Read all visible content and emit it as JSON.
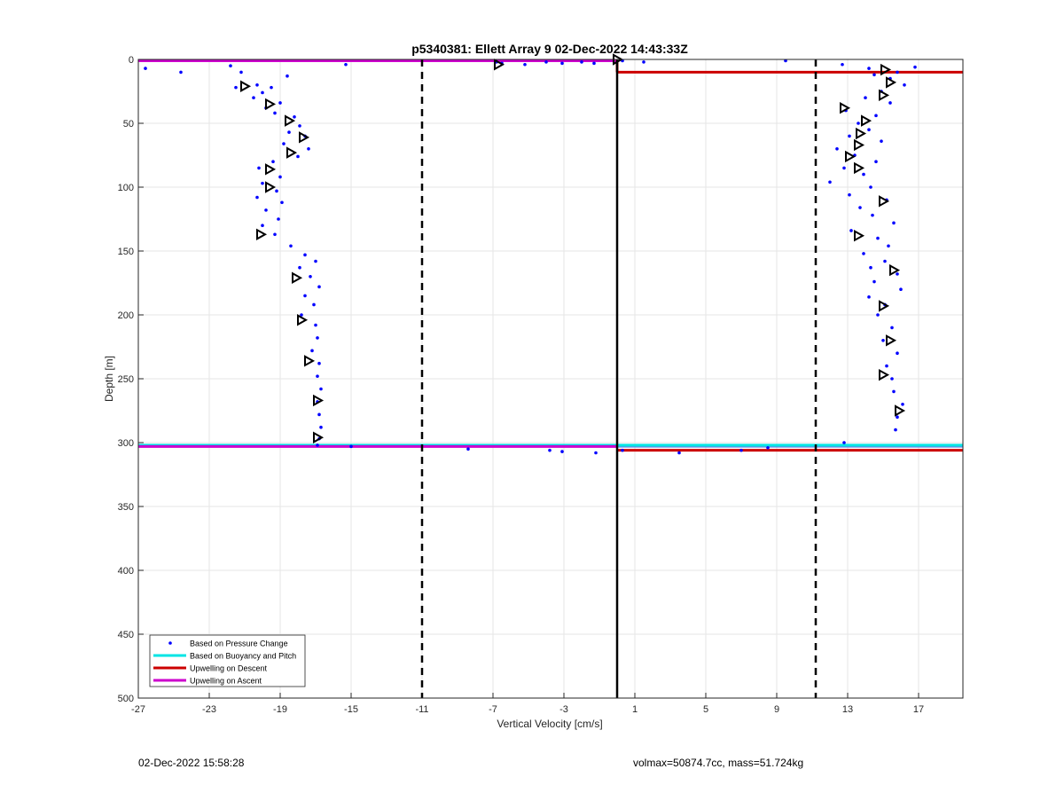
{
  "figure": {
    "timestamp": "02-Dec-2022 15:58:28",
    "info": "volmax=50874.7cc, mass=51.724kg"
  },
  "chart_data": {
    "type": "scatter",
    "title": "p5340381: Ellett Array 9 02-Dec-2022 14:43:33Z",
    "xlabel": "Vertical Velocity [cm/s]",
    "ylabel": "Depth [m]",
    "xlim": [
      -27,
      19.5
    ],
    "ylim": [
      0,
      500
    ],
    "y_reversed": true,
    "grid": true,
    "xticks": [
      -27,
      -23,
      -19,
      -15,
      -11,
      -7,
      -3,
      1,
      5,
      9,
      13,
      17
    ],
    "yticks": [
      0,
      50,
      100,
      150,
      200,
      250,
      300,
      350,
      400,
      450,
      500
    ],
    "legend_position": "bottom-left",
    "legend": [
      {
        "label": "Based on Pressure Change",
        "color": "#0000ff",
        "style": "dot"
      },
      {
        "label": "Based on Buoyancy and Pitch",
        "color": "#00e5e5",
        "style": "line"
      },
      {
        "label": "Upwelling on Descent",
        "color": "#cc0000",
        "style": "line"
      },
      {
        "label": "Upwelling on Ascent",
        "color": "#cc00cc",
        "style": "line"
      }
    ],
    "colors": {
      "pressure": "#0000ff",
      "buoyancy": "#00e5e5",
      "descent": "#cc0000",
      "ascent": "#cc00cc",
      "reference": "#000000"
    },
    "series": [
      {
        "name": "Based on Pressure Change",
        "points": [
          [
            -26.6,
            7
          ],
          [
            -24.6,
            10
          ],
          [
            -21.8,
            5
          ],
          [
            -21.2,
            10
          ],
          [
            -15.3,
            4
          ],
          [
            -18.6,
            13
          ],
          [
            -21.5,
            22
          ],
          [
            -20.3,
            20
          ],
          [
            -20.0,
            26
          ],
          [
            -19.5,
            22
          ],
          [
            -20.5,
            30
          ],
          [
            -19.8,
            38
          ],
          [
            -19.0,
            34
          ],
          [
            -19.3,
            42
          ],
          [
            -18.2,
            45
          ],
          [
            -17.9,
            52
          ],
          [
            -18.5,
            57
          ],
          [
            -17.6,
            60
          ],
          [
            -18.8,
            66
          ],
          [
            -17.4,
            70
          ],
          [
            -18.0,
            76
          ],
          [
            -19.4,
            80
          ],
          [
            -20.2,
            85
          ],
          [
            -19.0,
            92
          ],
          [
            -20.0,
            97
          ],
          [
            -19.2,
            103
          ],
          [
            -20.3,
            108
          ],
          [
            -18.9,
            112
          ],
          [
            -19.8,
            118
          ],
          [
            -19.1,
            125
          ],
          [
            -20.0,
            130
          ],
          [
            -19.3,
            137
          ],
          [
            -18.4,
            146
          ],
          [
            -17.6,
            153
          ],
          [
            -17.0,
            158
          ],
          [
            -17.9,
            163
          ],
          [
            -17.3,
            170
          ],
          [
            -16.8,
            178
          ],
          [
            -17.6,
            185
          ],
          [
            -17.1,
            192
          ],
          [
            -17.8,
            200
          ],
          [
            -17.0,
            208
          ],
          [
            -16.9,
            218
          ],
          [
            -17.2,
            228
          ],
          [
            -16.8,
            238
          ],
          [
            -16.9,
            248
          ],
          [
            -16.7,
            258
          ],
          [
            -16.9,
            268
          ],
          [
            -16.8,
            278
          ],
          [
            -16.7,
            288
          ],
          [
            -16.8,
            297
          ],
          [
            -16.9,
            302
          ],
          [
            -15.0,
            303
          ],
          [
            -8.4,
            305
          ],
          [
            -3.8,
            306
          ],
          [
            -3.1,
            307
          ],
          [
            -1.2,
            308
          ],
          [
            0.3,
            306
          ],
          [
            3.5,
            308
          ],
          [
            7.0,
            306
          ],
          [
            8.5,
            304
          ],
          [
            12.8,
            300
          ],
          [
            -6.8,
            2
          ],
          [
            -6.5,
            3
          ],
          [
            -5.2,
            4
          ],
          [
            -4.0,
            2
          ],
          [
            -3.1,
            3
          ],
          [
            -2.0,
            2
          ],
          [
            -1.3,
            3
          ],
          [
            0.3,
            1
          ],
          [
            1.5,
            2
          ],
          [
            9.5,
            1
          ],
          [
            12.7,
            4
          ],
          [
            14.2,
            7
          ],
          [
            15.8,
            10
          ],
          [
            16.8,
            6
          ],
          [
            15.4,
            15
          ],
          [
            14.5,
            12
          ],
          [
            16.2,
            20
          ],
          [
            14.9,
            25
          ],
          [
            14.0,
            30
          ],
          [
            15.4,
            34
          ],
          [
            12.9,
            40
          ],
          [
            14.6,
            44
          ],
          [
            13.6,
            50
          ],
          [
            14.2,
            55
          ],
          [
            13.1,
            60
          ],
          [
            14.9,
            64
          ],
          [
            12.4,
            70
          ],
          [
            13.4,
            75
          ],
          [
            14.6,
            80
          ],
          [
            12.8,
            85
          ],
          [
            13.9,
            90
          ],
          [
            12.0,
            96
          ],
          [
            14.3,
            100
          ],
          [
            13.1,
            106
          ],
          [
            15.2,
            110
          ],
          [
            13.7,
            116
          ],
          [
            14.4,
            122
          ],
          [
            15.6,
            128
          ],
          [
            13.2,
            134
          ],
          [
            14.7,
            140
          ],
          [
            15.3,
            146
          ],
          [
            13.9,
            152
          ],
          [
            15.1,
            158
          ],
          [
            14.3,
            163
          ],
          [
            15.8,
            168
          ],
          [
            14.5,
            174
          ],
          [
            16.0,
            180
          ],
          [
            14.2,
            186
          ],
          [
            15.1,
            192
          ],
          [
            14.7,
            200
          ],
          [
            15.5,
            210
          ],
          [
            15.0,
            220
          ],
          [
            15.8,
            230
          ],
          [
            15.2,
            240
          ],
          [
            15.5,
            250
          ],
          [
            15.6,
            260
          ],
          [
            16.1,
            270
          ],
          [
            15.8,
            280
          ],
          [
            15.7,
            290
          ]
        ]
      },
      {
        "name": "Based on Buoyancy and Pitch",
        "points": [
          [
            -27,
            302
          ],
          [
            19.5,
            302
          ]
        ]
      },
      {
        "name": "Upwelling on Descent",
        "points": [
          [
            0,
            0
          ],
          [
            0,
            10
          ],
          [
            19.5,
            10
          ],
          [
            19.5,
            10
          ],
          [
            0,
            306
          ],
          [
            19.5,
            306
          ]
        ]
      },
      {
        "name": "Upwelling on Ascent",
        "points": [
          [
            -27,
            1
          ],
          [
            0,
            1
          ],
          [
            -27,
            303
          ],
          [
            0,
            303
          ]
        ]
      }
    ],
    "reference_lines": {
      "solid_x": 0,
      "dashed_x": [
        -11,
        11.2
      ]
    },
    "triangle_markers": [
      [
        -21.0,
        21
      ],
      [
        -19.6,
        35
      ],
      [
        -18.5,
        48
      ],
      [
        -17.7,
        61
      ],
      [
        -18.4,
        73
      ],
      [
        -19.6,
        86
      ],
      [
        -19.6,
        100
      ],
      [
        -20.1,
        137
      ],
      [
        -18.1,
        171
      ],
      [
        -17.8,
        204
      ],
      [
        -17.4,
        236
      ],
      [
        -16.9,
        267
      ],
      [
        -16.9,
        296
      ],
      [
        -6.7,
        4
      ],
      [
        0,
        0
      ],
      [
        15.1,
        8
      ],
      [
        15.4,
        18
      ],
      [
        15.0,
        28
      ],
      [
        12.8,
        38
      ],
      [
        14.0,
        48
      ],
      [
        13.7,
        58
      ],
      [
        13.6,
        67
      ],
      [
        13.1,
        76
      ],
      [
        13.6,
        85
      ],
      [
        15.0,
        111
      ],
      [
        13.6,
        138
      ],
      [
        15.6,
        165
      ],
      [
        15.0,
        193
      ],
      [
        15.4,
        220
      ],
      [
        15.0,
        247
      ],
      [
        15.9,
        275
      ]
    ]
  }
}
